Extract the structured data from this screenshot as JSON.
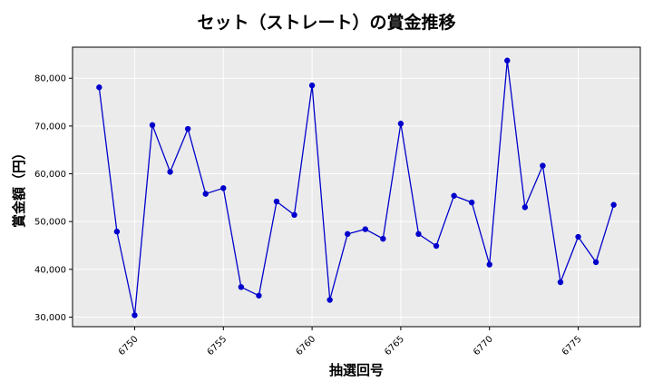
{
  "chart_data": {
    "type": "line",
    "title": "セット（ストレート）の賞金推移",
    "xlabel": "抽選回号",
    "ylabel": "賞金額（円）",
    "xlim": [
      6746.5,
      6778.5
    ],
    "ylim": [
      28000,
      86500
    ],
    "xticks": [
      6750,
      6755,
      6760,
      6765,
      6770,
      6775
    ],
    "yticks": [
      30000,
      40000,
      50000,
      60000,
      70000,
      80000
    ],
    "ytick_labels": [
      "30,000",
      "40,000",
      "50,000",
      "60,000",
      "70,000",
      "80,000"
    ],
    "grid": true,
    "series": [
      {
        "color": "#0000cc",
        "x": [
          6748,
          6749,
          6750,
          6751,
          6752,
          6753,
          6754,
          6755,
          6756,
          6757,
          6758,
          6759,
          6760,
          6761,
          6762,
          6763,
          6764,
          6765,
          6766,
          6767,
          6768,
          6769,
          6770,
          6771,
          6772,
          6773,
          6774,
          6775,
          6776,
          6777
        ],
        "values": [
          78100,
          47900,
          30400,
          70200,
          60400,
          69400,
          55800,
          57000,
          36300,
          34500,
          54200,
          51400,
          78500,
          33600,
          47400,
          48400,
          46400,
          70500,
          47400,
          44900,
          55400,
          54000,
          41000,
          83700,
          53000,
          61700,
          37300,
          46800,
          41500,
          53500
        ]
      }
    ]
  }
}
